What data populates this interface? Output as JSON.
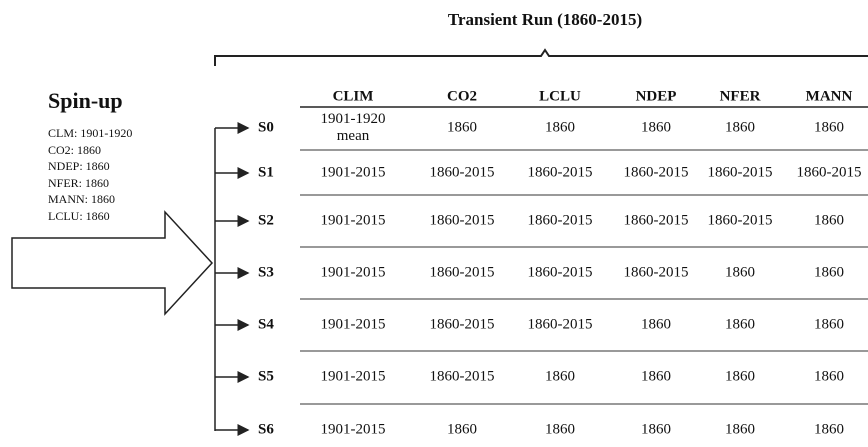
{
  "title": "Transient Run (1860-2015)",
  "spinup": {
    "heading": "Spin-up",
    "settings": [
      "CLM: 1901-1920",
      "CO2: 1860",
      "NDEP: 1860",
      "NFER: 1860",
      "MANN: 1860",
      "LCLU: 1860"
    ]
  },
  "table": {
    "columns": [
      "CLIM",
      "CO2",
      "LCLU",
      "NDEP",
      "NFER",
      "MANN"
    ],
    "rows": [
      {
        "scenario": "S0",
        "cells": [
          "1901-1920 mean",
          "1860",
          "1860",
          "1860",
          "1860",
          "1860"
        ]
      },
      {
        "scenario": "S1",
        "cells": [
          "1901-2015",
          "1860-2015",
          "1860-2015",
          "1860-2015",
          "1860-2015",
          "1860-2015"
        ]
      },
      {
        "scenario": "S2",
        "cells": [
          "1901-2015",
          "1860-2015",
          "1860-2015",
          "1860-2015",
          "1860-2015",
          "1860"
        ]
      },
      {
        "scenario": "S3",
        "cells": [
          "1901-2015",
          "1860-2015",
          "1860-2015",
          "1860-2015",
          "1860",
          "1860"
        ]
      },
      {
        "scenario": "S4",
        "cells": [
          "1901-2015",
          "1860-2015",
          "1860-2015",
          "1860",
          "1860",
          "1860"
        ]
      },
      {
        "scenario": "S5",
        "cells": [
          "1901-2015",
          "1860-2015",
          "1860",
          "1860",
          "1860",
          "1860"
        ]
      },
      {
        "scenario": "S6",
        "cells": [
          "1901-2015",
          "1860",
          "1860",
          "1860",
          "1860",
          "1860"
        ]
      }
    ]
  }
}
